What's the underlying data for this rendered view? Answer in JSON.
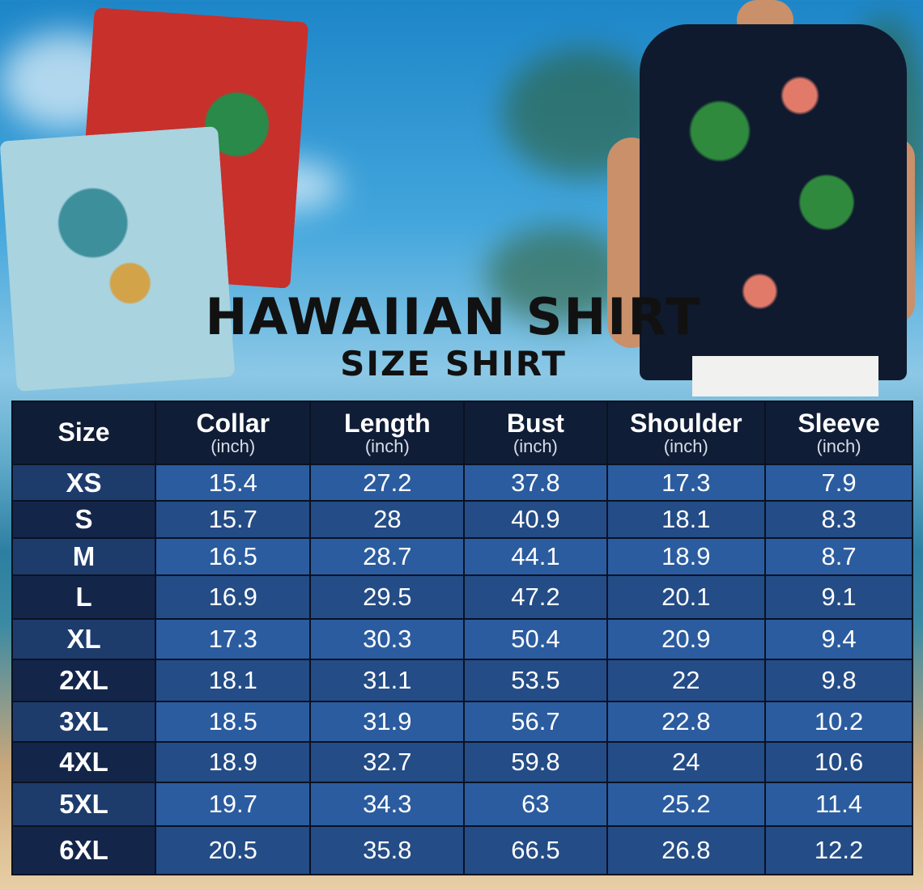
{
  "title": "HAWAIIAN SHIRT",
  "subtitle": "SIZE SHIRT",
  "colors": {
    "header": "#101d36",
    "row_light": "#2b5c9f",
    "row_dark": "#244c86",
    "size_col": "#13264a"
  },
  "table": {
    "headers": [
      {
        "label": "Size",
        "unit": ""
      },
      {
        "label": "Collar",
        "unit": "(inch)"
      },
      {
        "label": "Length",
        "unit": "(inch)"
      },
      {
        "label": "Bust",
        "unit": "(inch)"
      },
      {
        "label": "Shoulder",
        "unit": "(inch)"
      },
      {
        "label": "Sleeve",
        "unit": "(inch)"
      }
    ],
    "rows": [
      [
        "XS",
        "15.4",
        "27.2",
        "37.8",
        "17.3",
        "7.9"
      ],
      [
        "S",
        "15.7",
        "28",
        "40.9",
        "18.1",
        "8.3"
      ],
      [
        "M",
        "16.5",
        "28.7",
        "44.1",
        "18.9",
        "8.7"
      ],
      [
        "L",
        "16.9",
        "29.5",
        "47.2",
        "20.1",
        "9.1"
      ],
      [
        "XL",
        "17.3",
        "30.3",
        "50.4",
        "20.9",
        "9.4"
      ],
      [
        "2XL",
        "18.1",
        "31.1",
        "53.5",
        "22",
        "9.8"
      ],
      [
        "3XL",
        "18.5",
        "31.9",
        "56.7",
        "22.8",
        "10.2"
      ],
      [
        "4XL",
        "18.9",
        "32.7",
        "59.8",
        "24",
        "10.6"
      ],
      [
        "5XL",
        "19.7",
        "34.3",
        "63",
        "25.2",
        "11.4"
      ],
      [
        "6XL",
        "20.5",
        "35.8",
        "66.5",
        "26.8",
        "12.2"
      ]
    ]
  }
}
